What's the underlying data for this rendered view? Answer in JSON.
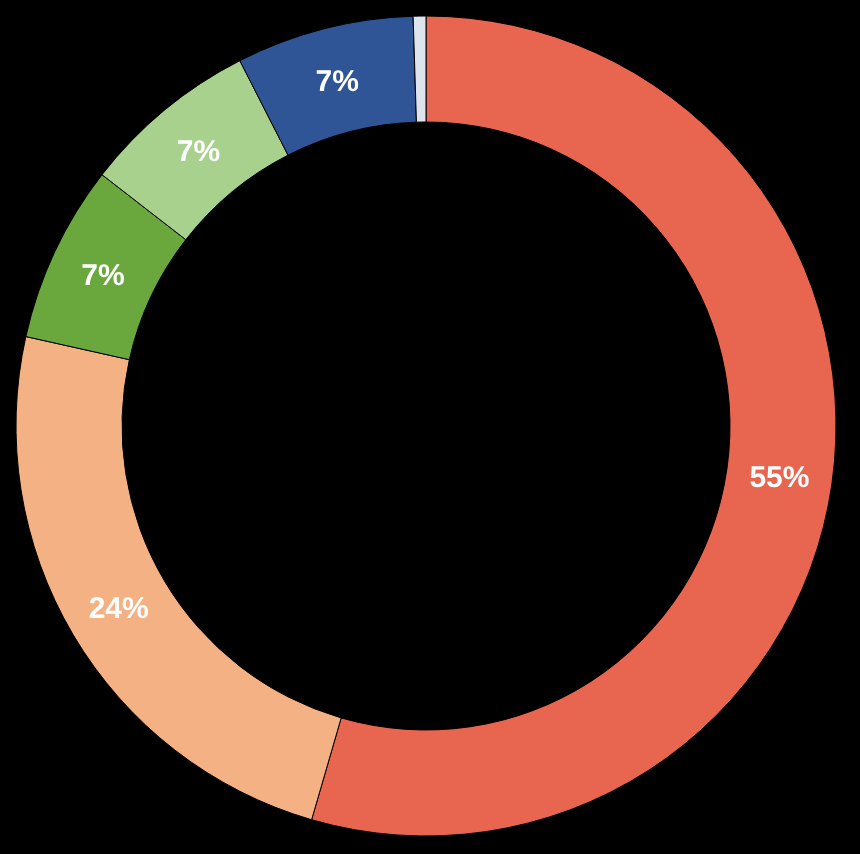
{
  "chart_data": {
    "type": "donut",
    "categories": [
      null,
      null,
      null,
      null,
      null,
      null
    ],
    "values": [
      54.5,
      24,
      7,
      7,
      7,
      0.5
    ],
    "colors": [
      "#e8664f",
      "#f4b183",
      "#6aa83e",
      "#a9d18e",
      "#2f5597",
      "#dde4ee"
    ],
    "value_labels": [
      "55%",
      "24%",
      "7%",
      "7%",
      "7%",
      null
    ]
  }
}
